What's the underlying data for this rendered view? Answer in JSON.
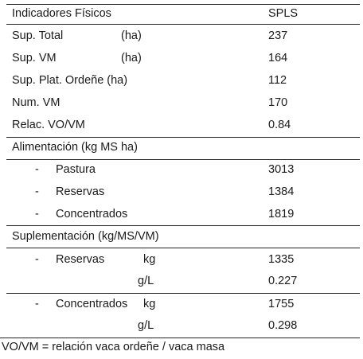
{
  "header": {
    "label": "Indicadores Físicos",
    "value": "SPLS"
  },
  "physical": [
    {
      "label": "Sup. Total",
      "unit": "(ha)",
      "value": "237"
    },
    {
      "label": "Sup. VM",
      "unit": "(ha)",
      "value": "164"
    },
    {
      "label": "Sup. Plat. Ordeñe (ha)",
      "unit": "",
      "value": "112"
    },
    {
      "label": "Num. VM",
      "unit": "",
      "value": "170"
    },
    {
      "label": "Relac. VO/VM",
      "unit": "",
      "value": "0.84"
    }
  ],
  "feeding": {
    "title": "Alimentación (kg MS ha)",
    "items": [
      {
        "dash": "-",
        "label": "Pastura",
        "value": "3013"
      },
      {
        "dash": "-",
        "label": "Reservas",
        "value": "1384"
      },
      {
        "dash": "-",
        "label": "Concentrados",
        "value": "1819"
      }
    ]
  },
  "supplementation": {
    "title": "Suplementación (kg/MS/VM)",
    "reservas": {
      "dash": "-",
      "label": "Reservas",
      "unit1": "kg",
      "value1": "1335",
      "unit2": "g/L",
      "value2": "0.227"
    },
    "concentrados": {
      "dash": "-",
      "label": "Concentrados",
      "unit1": "kg",
      "value1": "1755",
      "unit2": "g/L",
      "value2": "0.298"
    }
  },
  "footnote": "VO/VM = relación vaca ordeñe / vaca masa"
}
